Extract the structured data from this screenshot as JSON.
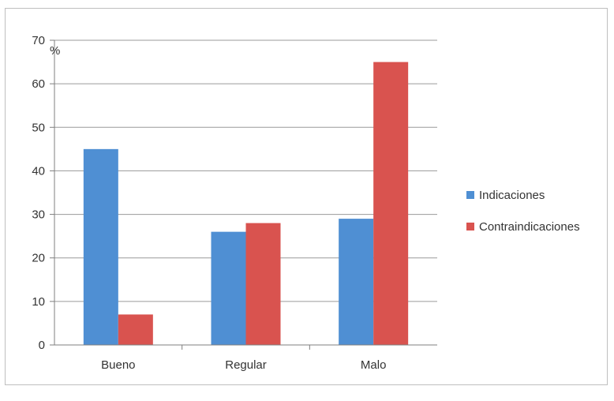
{
  "chart_data": {
    "type": "bar",
    "title": "",
    "xlabel": "",
    "ylabel": "",
    "unit_label": "%",
    "categories": [
      "Bueno",
      "Regular",
      "Malo"
    ],
    "series": [
      {
        "name": "Indicaciones",
        "color": "#4f8fd3",
        "values": [
          45,
          26,
          29
        ]
      },
      {
        "name": "Contraindicaciones",
        "color": "#d9534f",
        "values": [
          7,
          28,
          65
        ]
      }
    ],
    "ylim": [
      0,
      70
    ],
    "yticks": [
      0,
      10,
      20,
      30,
      40,
      50,
      60,
      70
    ],
    "y_tick_labels": [
      "0",
      "10",
      "20",
      "30",
      "40",
      "50",
      "60",
      "70"
    ],
    "grid": true,
    "legend_position": "right"
  }
}
